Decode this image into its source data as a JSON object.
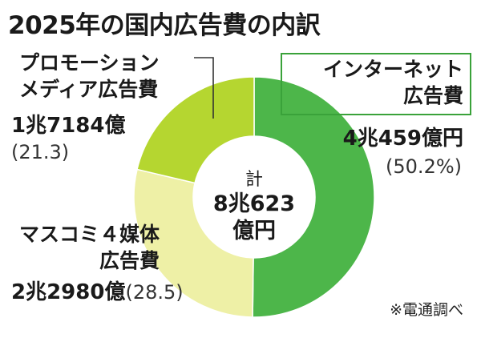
{
  "chart_data": {
    "type": "pie",
    "title": "2025年の国内広告費の内訳",
    "center": {
      "label": "計",
      "value_line1": "8兆623",
      "value_line2": "億円"
    },
    "slices": [
      {
        "name_line1": "インターネット",
        "name_line2": "広告費",
        "amount": "4兆459億円",
        "percent_text": "(50.2%)",
        "value": 50.2,
        "color": "#4db64a"
      },
      {
        "name_line1": "マスコミ４媒体",
        "name_line2": "広告費",
        "amount": "2兆2980億",
        "percent_text": "(28.5)",
        "value": 28.5,
        "color": "#eef0a6"
      },
      {
        "name_line1": "プロモーション",
        "name_line2": "メディア広告費",
        "amount": "1兆7184億",
        "percent_text": "(21.3)",
        "value": 21.3,
        "color": "#b5d630"
      }
    ],
    "source": "※電通調べ"
  }
}
